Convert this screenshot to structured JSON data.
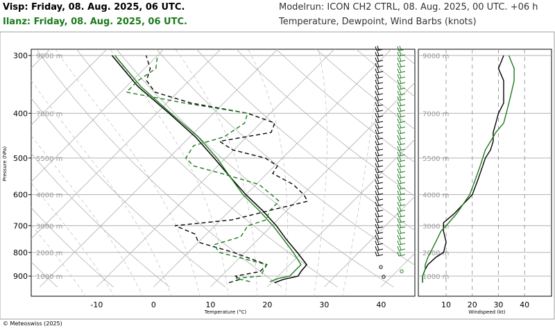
{
  "header": {
    "station1": "Visp: Friday, 08. Aug. 2025, 06 UTC.",
    "station2": "Ilanz: Friday, 08. Aug. 2025, 06 UTC.",
    "model": "Modelrun: ICON CH2 CTRL, 08. Aug. 2025, 00 UTC. +06 h",
    "variables": "Temperature, Dewpoint, Wind Barbs (knots)"
  },
  "footer": "© Meteoswiss (2025)",
  "colors": {
    "station1": "#000000",
    "station2": "#1a7a1a",
    "grid": "#b0b0b0"
  },
  "chart_data": [
    {
      "type": "line",
      "subtype": "skew-T log-p",
      "xlabel": "Temperature (°C)",
      "ylabel": "Pressure (hPa)",
      "x_ticks": [
        -10,
        0,
        10,
        20,
        30,
        40
      ],
      "y_ticks": [
        300,
        400,
        500,
        600,
        700,
        800,
        900
      ],
      "height_labels": [
        "9000 m",
        "7000 m",
        "5500 m",
        "4000 m",
        "3000 m",
        "2000 m",
        "1000 m"
      ],
      "xlim": [
        -25,
        47
      ],
      "ylim": [
        950,
        295
      ],
      "grid": true,
      "series": [
        {
          "name": "Visp: Friday, 08. Aug. 2025, 06 UTC.",
          "variable": "temperature",
          "p": [
            930,
            915,
            900,
            880,
            850,
            800,
            750,
            700,
            650,
            600,
            550,
            500,
            450,
            400,
            350,
            300
          ],
          "values": [
            20.5,
            21.5,
            23.5,
            23.2,
            23.0,
            19.2,
            15.0,
            10.8,
            5.8,
            0.0,
            -5.8,
            -12.0,
            -19.0,
            -27.8,
            -38.0,
            -48.0
          ]
        },
        {
          "name": "Visp: Friday, 08. Aug. 2025, 06 UTC.",
          "variable": "dewpoint",
          "p": [
            930,
            915,
            900,
            880,
            850,
            800,
            760,
            730,
            700,
            680,
            650,
            620,
            600,
            570,
            540,
            520,
            500,
            480,
            460,
            440,
            420,
            400,
            380,
            360,
            340,
            320,
            300
          ],
          "values": [
            12.5,
            13.8,
            12.5,
            16.0,
            16.0,
            8.0,
            0.0,
            -2.0,
            -7.0,
            2.0,
            6.8,
            12.0,
            10.2,
            6.5,
            1.0,
            0.5,
            -3.0,
            -10.2,
            -14.0,
            -6.5,
            -7.5,
            -14.0,
            -25.8,
            -34.0,
            -37.5,
            -39.0,
            -42.0
          ]
        },
        {
          "name": "Ilanz: Friday, 08. Aug. 2025, 06 UTC.",
          "variable": "temperature",
          "p": [
            925,
            910,
            900,
            880,
            850,
            800,
            750,
            700,
            650,
            600,
            550,
            500,
            450,
            400,
            350,
            300
          ],
          "values": [
            19.5,
            20.5,
            22.0,
            22.0,
            22.0,
            18.5,
            14.5,
            10.2,
            5.2,
            -0.5,
            -5.8,
            -11.5,
            -18.5,
            -27.5,
            -37.5,
            -47.5
          ]
        },
        {
          "name": "Ilanz: Friday, 08. Aug. 2025, 06 UTC.",
          "variable": "dewpoint",
          "p": [
            925,
            910,
            900,
            880,
            850,
            800,
            770,
            740,
            700,
            680,
            650,
            620,
            600,
            570,
            540,
            520,
            500,
            470,
            450,
            420,
            400,
            380,
            360,
            340,
            320,
            300
          ],
          "values": [
            16.0,
            13.0,
            17.0,
            16.5,
            16.0,
            5.5,
            3.2,
            6.5,
            5.8,
            8.0,
            7.0,
            7.0,
            4.5,
            0.5,
            -8.0,
            -14.2,
            -17.0,
            -17.8,
            -14.0,
            -12.8,
            -14.0,
            -27.0,
            -39.0,
            -39.0,
            -38.0,
            -40.0
          ]
        }
      ]
    },
    {
      "type": "line",
      "xlabel": "Windspeed (kt)",
      "x_ticks": [
        10,
        20,
        30,
        40
      ],
      "xlim": [
        0,
        50
      ],
      "ylim": [
        950,
        295
      ],
      "height_labels": [
        "9000 m",
        "7000 m",
        "5500 m",
        "4000 m",
        "3000 m",
        "2000 m",
        "1000 m"
      ],
      "series": [
        {
          "name": "Visp: Friday, 08. Aug. 2025, 06 UTC.",
          "p": [
            930,
            900,
            870,
            850,
            820,
            800,
            760,
            720,
            690,
            660,
            600,
            560,
            520,
            500,
            480,
            460,
            440,
            420,
            400,
            380,
            360,
            340,
            320,
            300
          ],
          "values": [
            1,
            1,
            2,
            3,
            6,
            9,
            10,
            9,
            9,
            13,
            20,
            22,
            24,
            25,
            27,
            28,
            28,
            29,
            30,
            32,
            32,
            32,
            30,
            32
          ]
        },
        {
          "name": "Ilanz: Friday, 08. Aug. 2025, 06 UTC.",
          "p": [
            930,
            900,
            870,
            850,
            820,
            800,
            760,
            720,
            690,
            660,
            600,
            560,
            520,
            500,
            480,
            460,
            440,
            420,
            400,
            380,
            360,
            340,
            320,
            300
          ],
          "values": [
            1,
            1,
            2,
            2,
            3,
            4,
            6,
            8,
            11,
            14,
            19,
            21,
            23,
            24,
            25,
            27,
            29,
            32,
            33,
            34,
            35,
            36,
            36,
            34
          ]
        }
      ]
    }
  ]
}
